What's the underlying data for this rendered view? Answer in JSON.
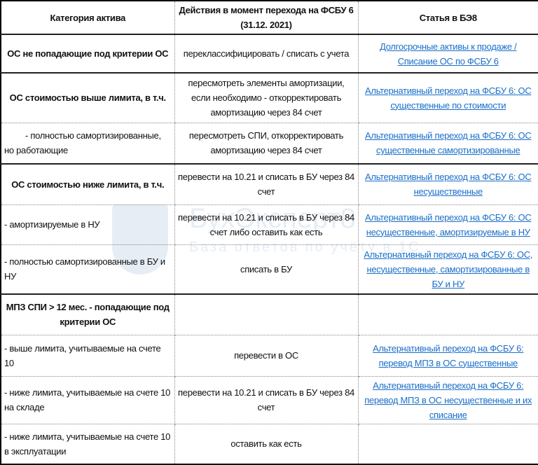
{
  "header": {
    "col1": "Категория актива",
    "col2": "Действия в момент перехода на ФСБУ 6 (31.12. 2021)",
    "col3": "Статья в БЭ8"
  },
  "rows": [
    {
      "category": "ОС не попадающие под критерии ОС",
      "action": "переклассифицировать / списать с учета",
      "link": "Долгосрочные активы к продаже / Списание ОС по ФСБУ 6"
    },
    {
      "category": "ОС стоимостью выше лимита, в т.ч.",
      "action": "пересмотреть элементы амортизации, если необходимо -  откорректировать амортизацию через 84 счет",
      "link": "Альтернативный переход на ФСБУ 6: ОС существенные по стоимости"
    },
    {
      "category": "- полностью самортизированные, но работающие",
      "action": "пересмотреть СПИ, откорректировать амортизацию через 84 счет",
      "link": "Альтернативный переход на ФСБУ 6: ОС существенные самортизированные"
    },
    {
      "category": "ОС стоимостью ниже лимита, в т.ч.",
      "action": "перевести на 10.21 и списать в БУ через 84 счет",
      "link": "Альтернативный переход на ФСБУ 6: ОС несущественные"
    },
    {
      "category": "- амортизируемые в НУ",
      "action": "перевести на 10.21 и списать в БУ через 84 счет либо оставить как есть",
      "link": "Альтернативный переход на ФСБУ 6: ОС несущественные, амортизируемые в НУ"
    },
    {
      "category": "- полностью самортизированные в БУ и НУ",
      "action": "списать в БУ",
      "link": "Альтернативный переход на ФСБУ 6: ОС, несущественные, самортизированные в БУ и НУ"
    },
    {
      "category": "МПЗ СПИ > 12 мес. - попадающие под критерии ОС",
      "action": "",
      "link": ""
    },
    {
      "category": "- выше лимита, учитываемые на счете 10",
      "action": "перевести в ОС",
      "link": "Альтернативный переход на ФСБУ 6: перевод МПЗ в ОС существенные"
    },
    {
      "category": "- ниже лимита, учитываемые на счете 10 на складе",
      "action": "перевести на 10.21 и списать в БУ через 84 счет",
      "link": "Альтернативный переход на ФСБУ 6: перевод МПЗ в ОС несущественные и их списание"
    },
    {
      "category": "-  ниже лимита, учитываемые на счете 10 в эксплуатации",
      "action": "оставить как есть",
      "link": ""
    }
  ],
  "watermark": {
    "brand": "БухЭксперт8",
    "tagline": "База ответов по учёту в 1С"
  },
  "colors": {
    "link": "#1a6fc9",
    "border": "#000000"
  }
}
